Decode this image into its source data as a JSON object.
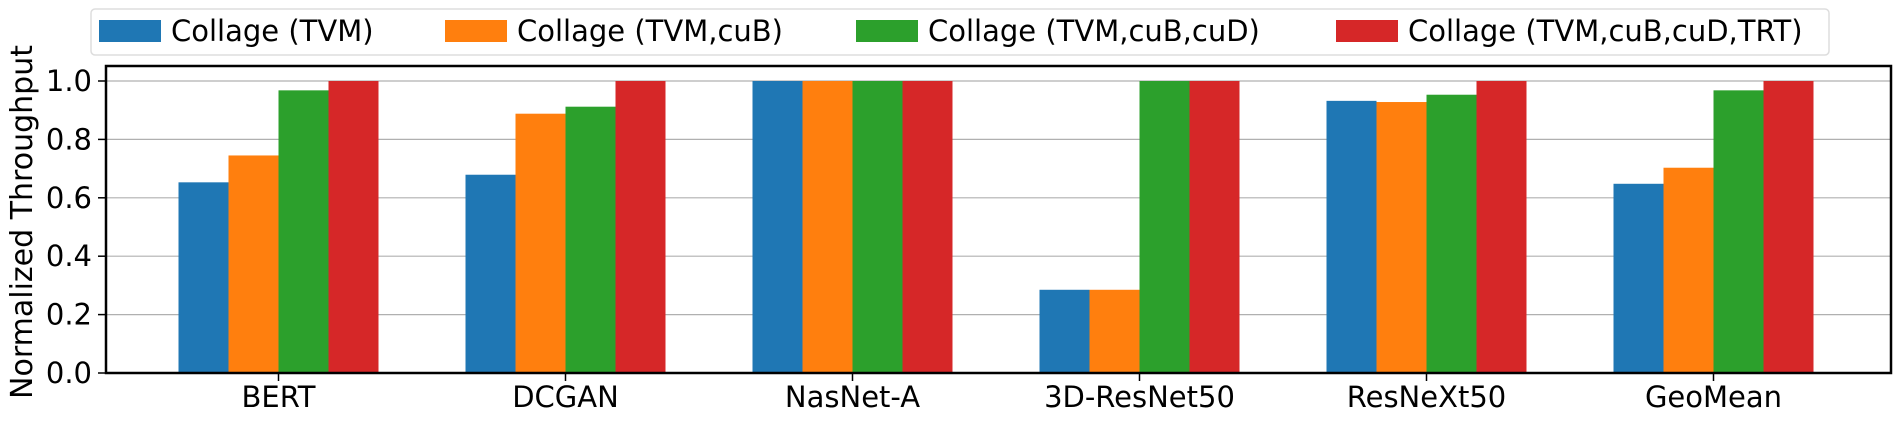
{
  "chart_data": {
    "type": "bar",
    "title": "",
    "xlabel": "",
    "ylabel": "Normalized Throughput",
    "ylim": [
      0,
      1.05
    ],
    "yticks": [
      "0.0",
      "0.2",
      "0.4",
      "0.6",
      "0.8",
      "1.0"
    ],
    "grid": "horizontal",
    "legend_position": "top",
    "categories": [
      "BERT",
      "DCGAN",
      "NasNet-A",
      "3D-ResNet50",
      "ResNeXt50",
      "GeoMean"
    ],
    "series": [
      {
        "name": "Collage (TVM)",
        "color": "#1f77b4",
        "values": [
          0.653,
          0.679,
          1.0,
          0.285,
          0.932,
          0.648
        ]
      },
      {
        "name": "Collage (TVM,cuB)",
        "color": "#ff7f0e",
        "values": [
          0.745,
          0.888,
          1.0,
          0.285,
          0.928,
          0.703
        ]
      },
      {
        "name": "Collage (TVM,cuB,cuD)",
        "color": "#2ca02c",
        "values": [
          0.968,
          0.912,
          1.0,
          1.0,
          0.953,
          0.968
        ]
      },
      {
        "name": "Collage (TVM,cuB,cuD,TRT)",
        "color": "#d62728",
        "values": [
          1.0,
          1.0,
          1.0,
          1.0,
          1.0,
          1.0
        ]
      }
    ]
  }
}
